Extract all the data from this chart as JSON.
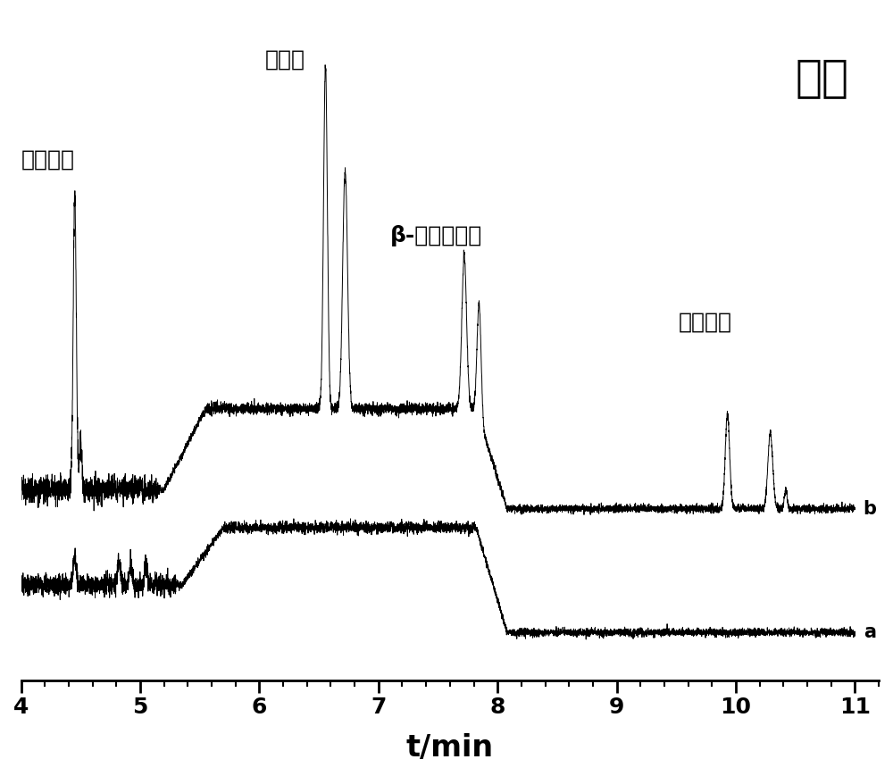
{
  "title": "尿液",
  "xlabel": "t/min",
  "xlim": [
    4,
    11
  ],
  "xticks": [
    4,
    5,
    6,
    7,
    8,
    9,
    10,
    11
  ],
  "label_a": "a",
  "label_b": "b",
  "annotation_1": "联苯菊酩",
  "annotation_2": "氯菊酩",
  "annotation_3": "β-氟氯氰菊酩",
  "annotation_4": "氰戊菊酩",
  "background_color": "#ffffff",
  "line_color": "#000000"
}
